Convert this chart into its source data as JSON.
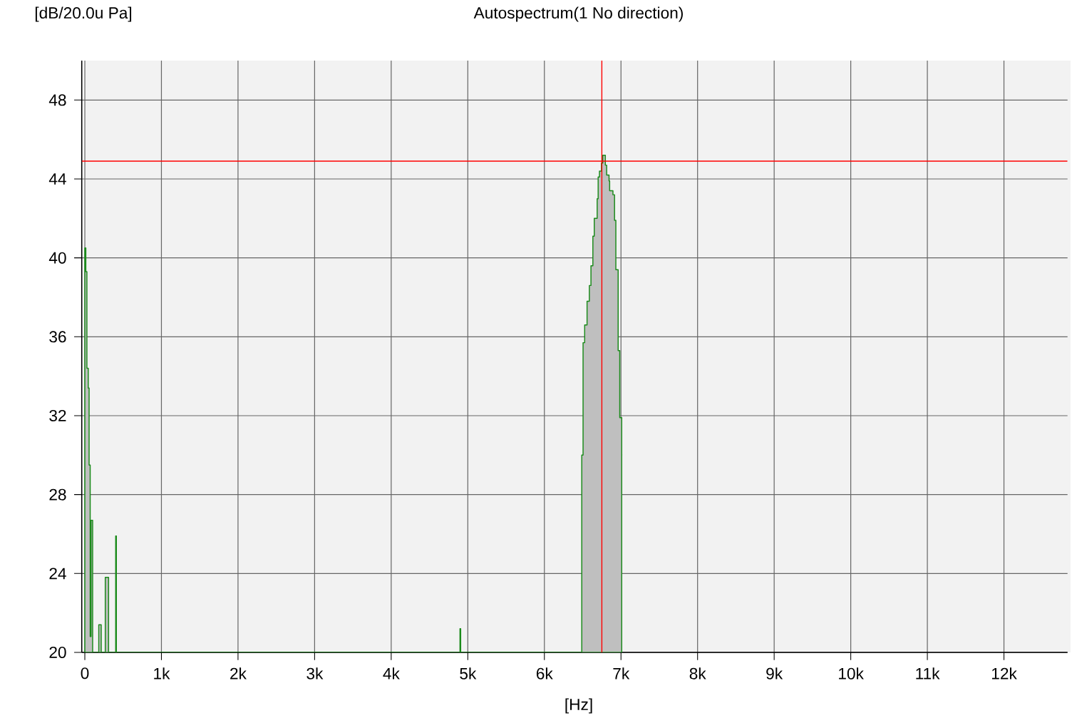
{
  "chart_data": {
    "type": "area",
    "title": "Autospectrum(1 No direction)",
    "ylabel": "[dB/20.0u Pa]",
    "xlabel": "[Hz]",
    "xlim": [
      -40,
      12830
    ],
    "ylim": [
      20,
      50
    ],
    "xticks": [
      {
        "value": 0,
        "label": "0"
      },
      {
        "value": 1000,
        "label": "1k"
      },
      {
        "value": 2000,
        "label": "2k"
      },
      {
        "value": 3000,
        "label": "3k"
      },
      {
        "value": 4000,
        "label": "4k"
      },
      {
        "value": 5000,
        "label": "5k"
      },
      {
        "value": 6000,
        "label": "6k"
      },
      {
        "value": 7000,
        "label": "7k"
      },
      {
        "value": 8000,
        "label": "8k"
      },
      {
        "value": 9000,
        "label": "9k"
      },
      {
        "value": 10000,
        "label": "10k"
      },
      {
        "value": 11000,
        "label": "11k"
      },
      {
        "value": 12000,
        "label": "12k"
      }
    ],
    "yticks": [
      20,
      24,
      28,
      32,
      36,
      40,
      44,
      48
    ],
    "grid": true,
    "series": [
      {
        "color": "#1a8a1a",
        "x": [
          0,
          0,
          13,
          13,
          27,
          27,
          45,
          45,
          56,
          56,
          70,
          70,
          81,
          81,
          102,
          102,
          182,
          182,
          214,
          214,
          267,
          267,
          310,
          310,
          403,
          403,
          412,
          412,
          4898,
          4898,
          4907,
          4907,
          6488,
          6488,
          6505,
          6505,
          6526,
          6526,
          6557,
          6557,
          6587,
          6587,
          6608,
          6608,
          6633,
          6633,
          6651,
          6651,
          6689,
          6689,
          6702,
          6702,
          6719,
          6719,
          6745,
          6745,
          6762,
          6762,
          6796,
          6796,
          6813,
          6813,
          6844,
          6844,
          6852,
          6852,
          6895,
          6895,
          6916,
          6916,
          6933,
          6933,
          6963,
          6963,
          6984,
          6984,
          7010,
          7010
        ],
        "values": [
          20,
          40.5,
          40.5,
          39.3,
          39.3,
          34.4,
          34.4,
          33.4,
          33.4,
          29.5,
          29.5,
          20.8,
          20.8,
          26.7,
          26.7,
          20,
          20,
          21.4,
          21.4,
          20,
          20,
          23.8,
          23.8,
          20,
          20,
          25.9,
          25.9,
          20,
          20,
          21.2,
          21.2,
          20,
          20,
          30.0,
          30.0,
          35.7,
          35.7,
          36.6,
          36.6,
          37.8,
          37.8,
          38.6,
          38.6,
          39.6,
          39.6,
          41.1,
          41.1,
          42.0,
          42.0,
          43.0,
          43.0,
          44.1,
          44.1,
          44.4,
          44.4,
          44.8,
          44.8,
          45.2,
          45.2,
          44.7,
          44.7,
          44.2,
          44.2,
          43.9,
          43.9,
          43.4,
          43.4,
          43.2,
          43.2,
          41.9,
          41.9,
          39.4,
          39.4,
          35.3,
          35.3,
          31.9,
          31.9,
          20
        ]
      }
    ],
    "ref_lines": [
      {
        "axis": "x",
        "value": 6750,
        "color": "#ff0000"
      },
      {
        "axis": "y",
        "value": 44.9,
        "color": "#ff0000"
      }
    ]
  }
}
